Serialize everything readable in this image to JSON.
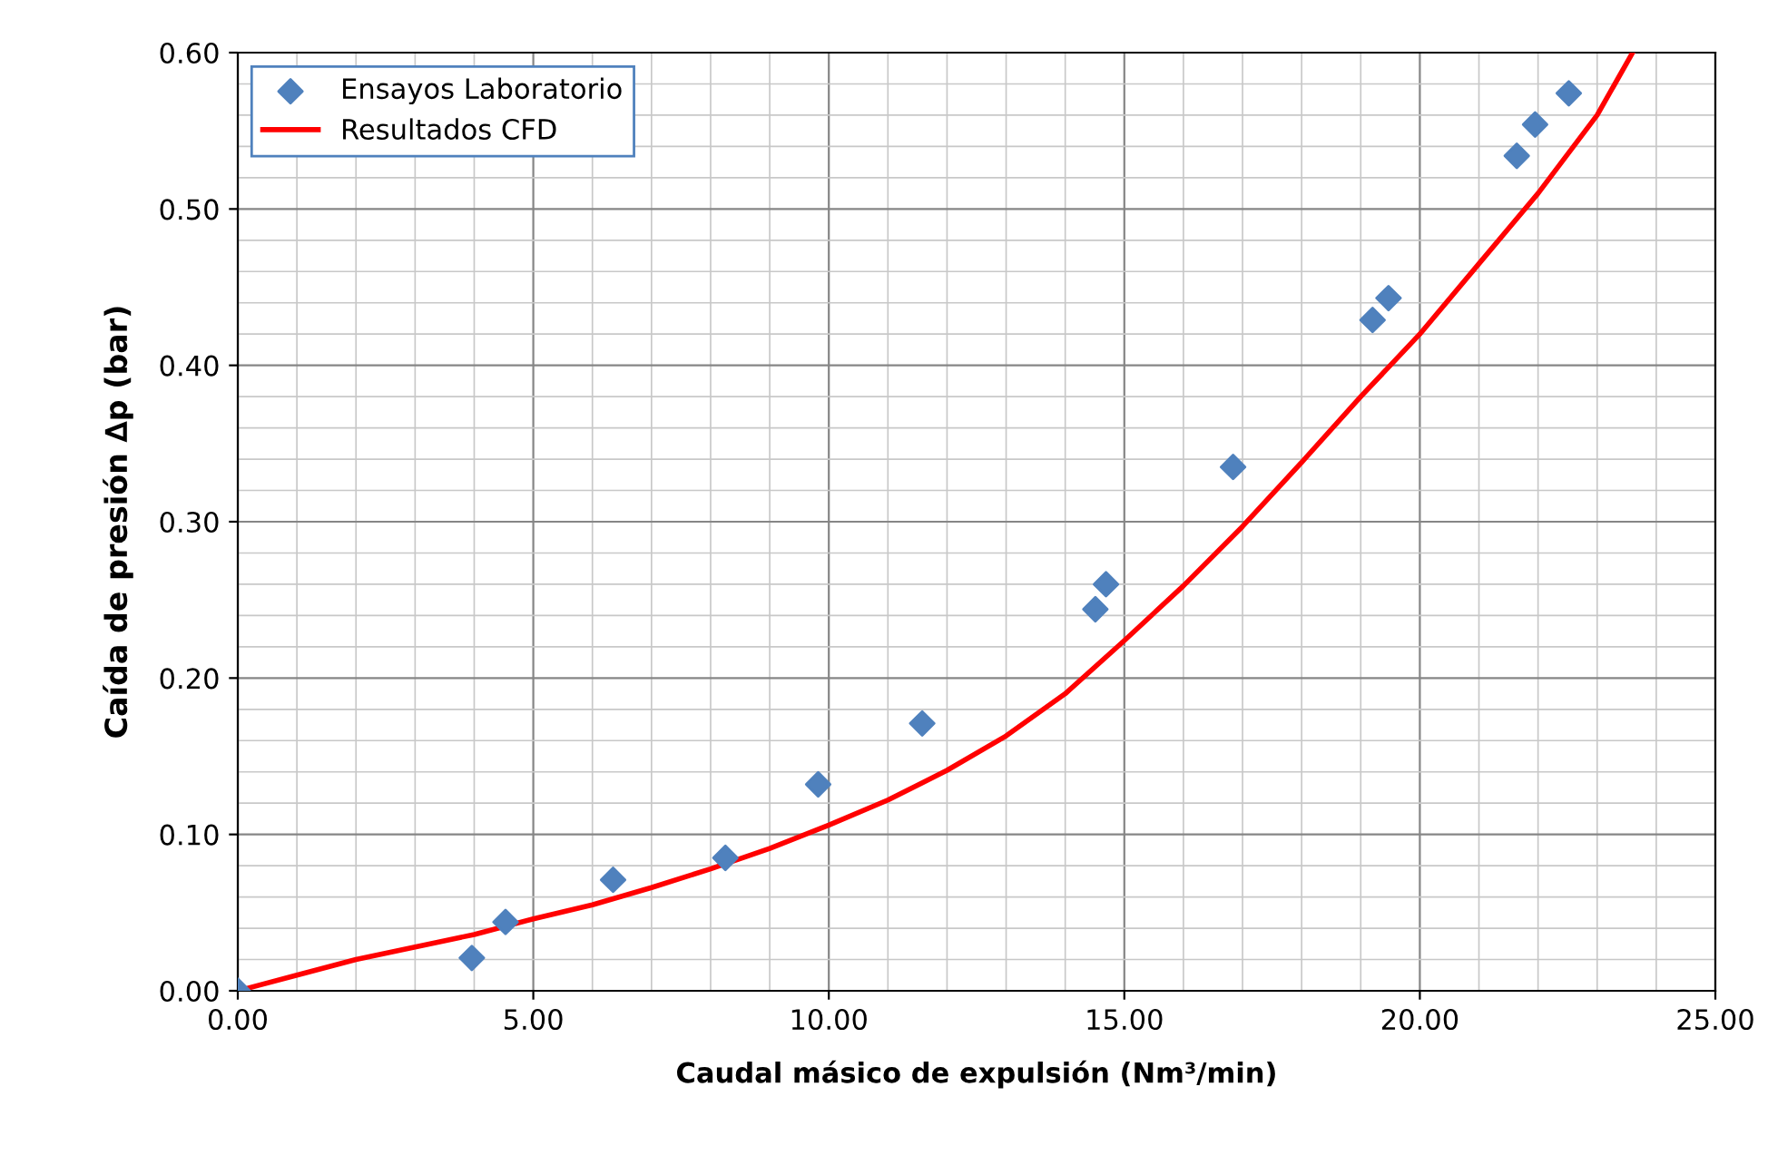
{
  "chart_data": {
    "type": "scatter",
    "xlabel": "Caudal másico de expulsión (Nm³/min)",
    "ylabel": "Caída de presión ∆p (bar)",
    "xlim": [
      0,
      25
    ],
    "ylim": [
      0,
      0.6
    ],
    "xticks": [
      {
        "value": 0,
        "label": "0.00"
      },
      {
        "value": 5,
        "label": "5.00"
      },
      {
        "value": 10,
        "label": "10.00"
      },
      {
        "value": 15,
        "label": "15.00"
      },
      {
        "value": 20,
        "label": "20.00"
      },
      {
        "value": 25,
        "label": "25.00"
      }
    ],
    "yticks": [
      {
        "value": 0,
        "label": "0.00"
      },
      {
        "value": 0.1,
        "label": "0.10"
      },
      {
        "value": 0.2,
        "label": "0.20"
      },
      {
        "value": 0.3,
        "label": "0.30"
      },
      {
        "value": 0.4,
        "label": "0.40"
      },
      {
        "value": 0.5,
        "label": "0.50"
      },
      {
        "value": 0.6,
        "label": "0.60"
      }
    ],
    "grid": true,
    "legend": "top left",
    "series": [
      {
        "name": "Ensayos Laboratorio",
        "marker": "diamond",
        "color": "#4f81bd",
        "x": [
          0,
          3.96,
          4.53,
          6.35,
          8.25,
          9.82,
          11.58,
          14.51,
          14.69,
          16.84,
          19.2,
          19.47,
          21.64,
          21.95,
          22.52
        ],
        "values": [
          0,
          0.021,
          0.044,
          0.071,
          0.085,
          0.132,
          0.171,
          0.244,
          0.26,
          0.335,
          0.429,
          0.443,
          0.534,
          0.554,
          0.574
        ]
      },
      {
        "name": "Resultados CFD",
        "type": "line",
        "marker": "none",
        "line_style": "solid",
        "color": "#ff0000",
        "x": [
          0,
          1,
          2,
          3,
          4,
          5,
          6,
          7,
          8,
          9,
          10,
          11,
          12,
          13,
          14,
          15,
          16,
          17,
          18,
          19,
          20,
          21,
          22,
          23,
          23.6
        ],
        "values": [
          0,
          0.01,
          0.02,
          0.028,
          0.036,
          0.046,
          0.055,
          0.066,
          0.078,
          0.091,
          0.106,
          0.122,
          0.141,
          0.163,
          0.19,
          0.224,
          0.259,
          0.297,
          0.338,
          0.38,
          0.42,
          0.465,
          0.51,
          0.56,
          0.6
        ]
      }
    ]
  }
}
